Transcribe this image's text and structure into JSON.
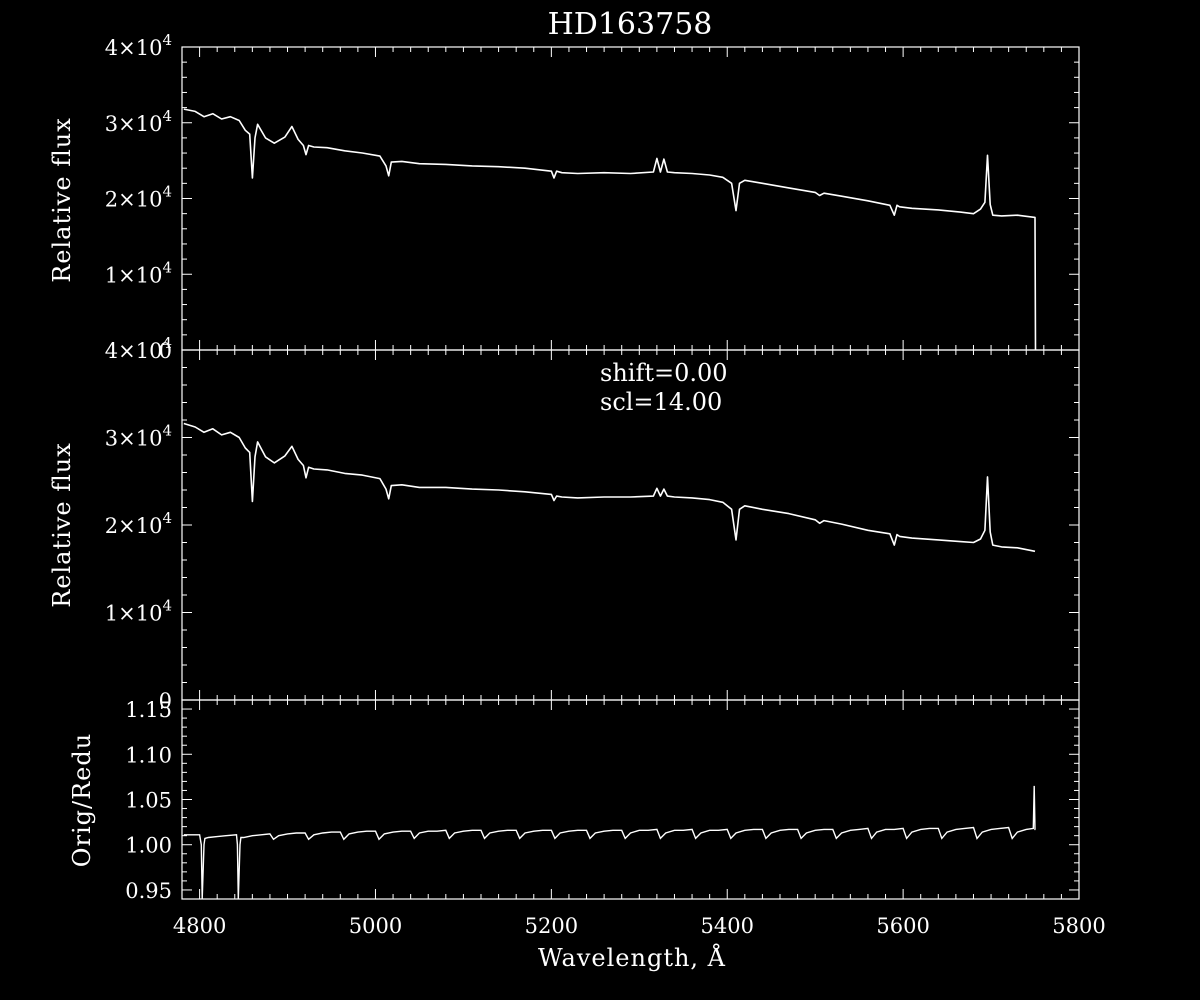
{
  "chart_data": {
    "type": "line",
    "title": "HD163758",
    "colors": {
      "background": "#000000",
      "foreground": "#ffffff"
    },
    "xlabel": "Wavelength, Å",
    "xlim": [
      4780,
      5800
    ],
    "xticks": [
      "4800",
      "5000",
      "5200",
      "5400",
      "5600",
      "5800"
    ],
    "panels": [
      {
        "id": "top",
        "ylabel": "Relative flux",
        "ylim": [
          0,
          40000
        ],
        "yticks": [
          {
            "mantissa": "0",
            "exp": ""
          },
          {
            "mantissa": "1×10",
            "exp": "4"
          },
          {
            "mantissa": "2×10",
            "exp": "4"
          },
          {
            "mantissa": "3×10",
            "exp": "4"
          },
          {
            "mantissa": "4×10",
            "exp": "4"
          }
        ],
        "series": [
          {
            "x": [
              4782,
              4795,
              4805,
              4815,
              4825,
              4835,
              4845,
              4852,
              4857,
              4860,
              4863,
              4866,
              4875,
              4885,
              4897,
              4905,
              4912,
              4918,
              4921,
              4924,
              4930,
              4945,
              4965,
              4985,
              5005,
              5012,
              5015,
              5018,
              5030,
              5050,
              5080,
              5110,
              5140,
              5170,
              5200,
              5203,
              5206,
              5212,
              5230,
              5260,
              5290,
              5316,
              5320,
              5324,
              5328,
              5332,
              5340,
              5360,
              5380,
              5395,
              5405,
              5410,
              5414,
              5420,
              5440,
              5470,
              5500,
              5505,
              5510,
              5530,
              5560,
              5585,
              5590,
              5593,
              5596,
              5610,
              5640,
              5665,
              5680,
              5688,
              5693,
              5696,
              5699,
              5702,
              5712,
              5730,
              5750,
              5750.5
            ],
            "y": [
              31800,
              31500,
              30800,
              31200,
              30500,
              30800,
              30300,
              29000,
              28500,
              22700,
              28000,
              29800,
              28000,
              27300,
              28100,
              29500,
              27800,
              27000,
              25800,
              27000,
              26800,
              26700,
              26300,
              26000,
              25600,
              24300,
              23000,
              24800,
              24900,
              24600,
              24500,
              24300,
              24200,
              24000,
              23600,
              22700,
              23600,
              23400,
              23300,
              23400,
              23300,
              23500,
              25300,
              23500,
              25200,
              23500,
              23400,
              23300,
              23100,
              22800,
              22000,
              18400,
              22000,
              22400,
              22000,
              21400,
              20800,
              20400,
              20700,
              20300,
              19700,
              19100,
              17800,
              19100,
              18900,
              18700,
              18500,
              18200,
              18000,
              18600,
              19500,
              25700,
              19200,
              17800,
              17700,
              17800,
              17500,
              0
            ]
          }
        ]
      },
      {
        "id": "middle",
        "ylabel": "Relative flux",
        "ylim": [
          0,
          40000
        ],
        "yticks": [
          {
            "mantissa": "0",
            "exp": ""
          },
          {
            "mantissa": "1×10",
            "exp": "4"
          },
          {
            "mantissa": "2×10",
            "exp": "4"
          },
          {
            "mantissa": "3×10",
            "exp": "4"
          },
          {
            "mantissa": "4×10",
            "exp": "4"
          }
        ],
        "annotations": [
          "shift=0.00",
          "scl=14.00"
        ],
        "series": [
          {
            "x": [
              4782,
              4795,
              4805,
              4815,
              4825,
              4835,
              4845,
              4852,
              4857,
              4860,
              4863,
              4866,
              4875,
              4885,
              4897,
              4905,
              4912,
              4918,
              4921,
              4924,
              4930,
              4945,
              4965,
              4985,
              5005,
              5012,
              5015,
              5018,
              5030,
              5050,
              5080,
              5110,
              5140,
              5170,
              5200,
              5203,
              5206,
              5212,
              5230,
              5260,
              5290,
              5316,
              5320,
              5324,
              5328,
              5332,
              5340,
              5360,
              5380,
              5395,
              5405,
              5410,
              5414,
              5420,
              5440,
              5470,
              5500,
              5505,
              5510,
              5530,
              5560,
              5585,
              5590,
              5593,
              5596,
              5610,
              5640,
              5665,
              5680,
              5688,
              5693,
              5696,
              5699,
              5702,
              5712,
              5730,
              5750
            ],
            "y": [
              31600,
              31200,
              30600,
              31000,
              30300,
              30600,
              30000,
              28800,
              28300,
              22700,
              27800,
              29500,
              27800,
              27100,
              27900,
              29000,
              27500,
              26800,
              25400,
              26600,
              26400,
              26300,
              25900,
              25700,
              25300,
              24100,
              23000,
              24500,
              24600,
              24300,
              24300,
              24100,
              24000,
              23800,
              23500,
              22800,
              23300,
              23200,
              23100,
              23200,
              23200,
              23300,
              24200,
              23300,
              24100,
              23300,
              23200,
              23100,
              22900,
              22600,
              21800,
              18300,
              21800,
              22200,
              21800,
              21300,
              20600,
              20200,
              20500,
              20100,
              19400,
              19000,
              17700,
              18900,
              18700,
              18500,
              18300,
              18100,
              18000,
              18400,
              19400,
              25500,
              19200,
              17700,
              17500,
              17400,
              17000
            ]
          }
        ]
      },
      {
        "id": "bottom",
        "ylabel": "Orig/Redu",
        "ylim": [
          0.94,
          1.16
        ],
        "yticks": [
          {
            "mantissa": "0.95",
            "exp": ""
          },
          {
            "mantissa": "1.00",
            "exp": ""
          },
          {
            "mantissa": "1.05",
            "exp": ""
          },
          {
            "mantissa": "1.10",
            "exp": ""
          },
          {
            "mantissa": "1.15",
            "exp": ""
          }
        ],
        "series": [
          {
            "x": [
              4782,
              4800,
              4802,
              4803,
              4805,
              4806,
              4810,
              4820,
              4830,
              4842,
              4843,
              4844,
              4846,
              4847,
              4850,
              4860,
              4870,
              4880,
              4884,
              4890,
              4900,
              4910,
              4920,
              4924,
              4930,
              4940,
              4950,
              4960,
              4964,
              4970,
              4980,
              4990,
              5000,
              5004,
              5010,
              5020,
              5030,
              5040,
              5044,
              5050,
              5060,
              5070,
              5080,
              5084,
              5090,
              5100,
              5110,
              5120,
              5124,
              5130,
              5140,
              5150,
              5160,
              5164,
              5170,
              5180,
              5190,
              5200,
              5204,
              5210,
              5220,
              5230,
              5240,
              5244,
              5250,
              5260,
              5270,
              5280,
              5284,
              5290,
              5300,
              5310,
              5320,
              5324,
              5330,
              5340,
              5350,
              5360,
              5364,
              5370,
              5380,
              5390,
              5400,
              5404,
              5410,
              5420,
              5430,
              5440,
              5444,
              5450,
              5460,
              5470,
              5480,
              5484,
              5490,
              5500,
              5510,
              5520,
              5524,
              5530,
              5540,
              5550,
              5560,
              5564,
              5570,
              5580,
              5590,
              5600,
              5604,
              5610,
              5620,
              5630,
              5640,
              5644,
              5650,
              5660,
              5670,
              5680,
              5684,
              5690,
              5700,
              5710,
              5720,
              5724,
              5730,
              5740,
              5748,
              5749,
              5750,
              5750.5
            ],
            "y": [
              1.011,
              1.011,
              1.0,
              0.94,
              1.0,
              1.007,
              1.008,
              1.009,
              1.01,
              1.011,
              1.0,
              0.94,
              1.0,
              1.008,
              1.008,
              1.01,
              1.011,
              1.012,
              1.006,
              1.01,
              1.012,
              1.013,
              1.013,
              1.006,
              1.011,
              1.013,
              1.014,
              1.014,
              1.006,
              1.012,
              1.014,
              1.015,
              1.015,
              1.006,
              1.012,
              1.014,
              1.015,
              1.015,
              1.007,
              1.013,
              1.015,
              1.015,
              1.016,
              1.007,
              1.013,
              1.015,
              1.016,
              1.016,
              1.007,
              1.013,
              1.015,
              1.016,
              1.016,
              1.007,
              1.013,
              1.015,
              1.016,
              1.016,
              1.007,
              1.013,
              1.015,
              1.016,
              1.016,
              1.007,
              1.013,
              1.015,
              1.016,
              1.016,
              1.007,
              1.013,
              1.016,
              1.016,
              1.017,
              1.007,
              1.013,
              1.016,
              1.016,
              1.017,
              1.007,
              1.013,
              1.016,
              1.016,
              1.017,
              1.007,
              1.013,
              1.016,
              1.017,
              1.017,
              1.007,
              1.013,
              1.016,
              1.017,
              1.017,
              1.007,
              1.013,
              1.016,
              1.017,
              1.017,
              1.007,
              1.013,
              1.016,
              1.017,
              1.018,
              1.007,
              1.014,
              1.017,
              1.017,
              1.018,
              1.007,
              1.014,
              1.017,
              1.018,
              1.018,
              1.007,
              1.014,
              1.017,
              1.018,
              1.019,
              1.007,
              1.014,
              1.017,
              1.018,
              1.019,
              1.007,
              1.014,
              1.017,
              1.018,
              1.065,
              1.017,
              1.017
            ]
          }
        ]
      }
    ]
  }
}
